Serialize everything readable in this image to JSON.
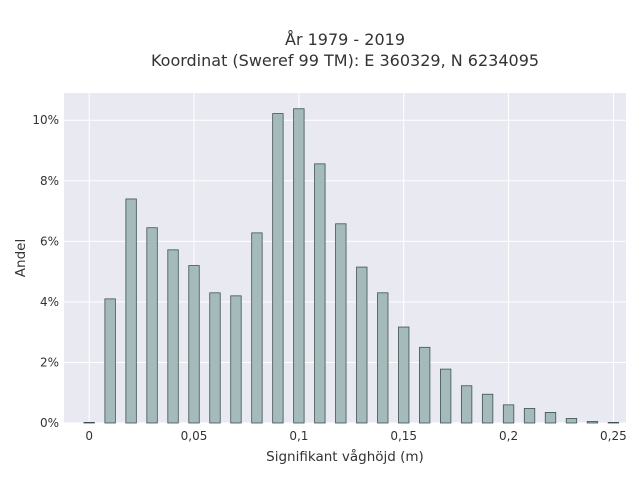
{
  "chart_data": {
    "type": "bar",
    "title_lines": [
      "År 1979 - 2019",
      "Koordinat (Sweref 99 TM): E 360329, N 6234095"
    ],
    "xlabel": "Signifikant våghöjd (m)",
    "ylabel": "Andel",
    "xlim": [
      -0.012,
      0.256
    ],
    "ylim": [
      0,
      10.9
    ],
    "xticks": [
      {
        "value": 0,
        "label": "0"
      },
      {
        "value": 0.05,
        "label": "0,05"
      },
      {
        "value": 0.1,
        "label": "0,1"
      },
      {
        "value": 0.15,
        "label": "0,15"
      },
      {
        "value": 0.2,
        "label": "0,2"
      },
      {
        "value": 0.25,
        "label": "0,25"
      }
    ],
    "yticks": [
      {
        "value": 0,
        "label": "0%"
      },
      {
        "value": 2,
        "label": "2%"
      },
      {
        "value": 4,
        "label": "4%"
      },
      {
        "value": 6,
        "label": "6%"
      },
      {
        "value": 8,
        "label": "8%"
      },
      {
        "value": 10,
        "label": "10%"
      }
    ],
    "bar_width": 0.005,
    "x": [
      0,
      0.01,
      0.02,
      0.03,
      0.04,
      0.05,
      0.06,
      0.07,
      0.08,
      0.09,
      0.1,
      0.11,
      0.12,
      0.13,
      0.14,
      0.15,
      0.16,
      0.17,
      0.18,
      0.19,
      0.2,
      0.21,
      0.22,
      0.23,
      0.24,
      0.25
    ],
    "values": [
      0.02,
      4.1,
      7.4,
      6.45,
      5.72,
      5.2,
      4.3,
      4.2,
      6.28,
      10.22,
      10.38,
      8.56,
      6.58,
      5.15,
      4.3,
      3.17,
      2.5,
      1.78,
      1.23,
      0.95,
      0.6,
      0.48,
      0.35,
      0.15,
      0.05,
      0.02
    ],
    "grid": true,
    "colors": {
      "bar_fill": "#a4babb",
      "bar_edge": "#3d5250",
      "plot_bg": "#e9e9f1",
      "grid": "#ffffff"
    }
  }
}
